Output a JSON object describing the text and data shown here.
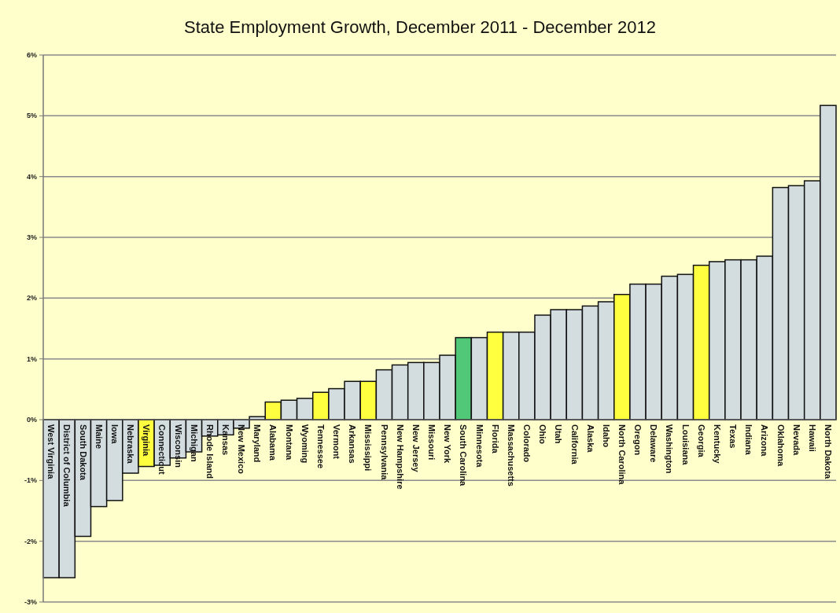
{
  "chart_data": {
    "type": "bar",
    "title": "State Employment Growth, December 2011 - December 2012",
    "categories": [
      "West Virginia",
      "District of Columbia",
      "South Dakota",
      "Maine",
      "Iowa",
      "Nebraska",
      "Virginia",
      "Connecticut",
      "Wisconsin",
      "Michigan",
      "Rhode Island",
      "Kansas",
      "New Mexico",
      "Maryland",
      "Alabama",
      "Montana",
      "Wyoming",
      "Tennessee",
      "Vermont",
      "Arkansas",
      "Mississippi",
      "Pennsylvania",
      "New Hampshire",
      "New Jersey",
      "Missouri",
      "New York",
      "South Carolina",
      "Minnesota",
      "Florida",
      "Massachusetts",
      "Colorado",
      "Ohio",
      "Utah",
      "California",
      "Alaska",
      "Idaho",
      "North Carolina",
      "Oregon",
      "Delaware",
      "Washington",
      "Louisiana",
      "Georgia",
      "Kentucky",
      "Texas",
      "Indiana",
      "Arizona",
      "Oklahoma",
      "Nevada",
      "Hawaii",
      "North Dakota"
    ],
    "values": [
      -2.6,
      -2.6,
      -1.92,
      -1.43,
      -1.33,
      -0.88,
      -0.77,
      -0.75,
      -0.63,
      -0.53,
      -0.27,
      -0.25,
      -0.14,
      0.05,
      0.29,
      0.32,
      0.35,
      0.45,
      0.51,
      0.63,
      0.63,
      0.82,
      0.9,
      0.94,
      0.94,
      1.06,
      1.35,
      1.35,
      1.44,
      1.44,
      1.44,
      1.72,
      1.81,
      1.81,
      1.87,
      1.94,
      2.06,
      2.23,
      2.23,
      2.36,
      2.39,
      2.54,
      2.6,
      2.63,
      2.63,
      2.69,
      3.82,
      3.85,
      3.93,
      5.17
    ],
    "colors": [
      "#d3dde0",
      "#d3dde0",
      "#d3dde0",
      "#d3dde0",
      "#d3dde0",
      "#d3dde0",
      "#ffff40",
      "#d3dde0",
      "#d3dde0",
      "#d3dde0",
      "#d3dde0",
      "#d3dde0",
      "#d3dde0",
      "#d3dde0",
      "#ffff40",
      "#d3dde0",
      "#d3dde0",
      "#ffff40",
      "#d3dde0",
      "#d3dde0",
      "#ffff40",
      "#d3dde0",
      "#d3dde0",
      "#d3dde0",
      "#d3dde0",
      "#d3dde0",
      "#50c878",
      "#d3dde0",
      "#ffff40",
      "#d3dde0",
      "#d3dde0",
      "#d3dde0",
      "#d3dde0",
      "#d3dde0",
      "#d3dde0",
      "#d3dde0",
      "#ffff40",
      "#d3dde0",
      "#d3dde0",
      "#d3dde0",
      "#d3dde0",
      "#ffff40",
      "#d3dde0",
      "#d3dde0",
      "#d3dde0",
      "#d3dde0",
      "#d3dde0",
      "#d3dde0",
      "#d3dde0",
      "#d3dde0"
    ],
    "ylim": [
      -3,
      6
    ],
    "yticks": [
      {
        "value": -3,
        "label": "-3%"
      },
      {
        "value": -2,
        "label": "-2%"
      },
      {
        "value": -1,
        "label": "-1%"
      },
      {
        "value": 0,
        "label": "0%"
      },
      {
        "value": 1,
        "label": "1%"
      },
      {
        "value": 2,
        "label": "2%"
      },
      {
        "value": 3,
        "label": "3%"
      },
      {
        "value": 4,
        "label": "4%"
      },
      {
        "value": 5,
        "label": "5%"
      },
      {
        "value": 6,
        "label": "6%"
      }
    ],
    "grid": "y"
  }
}
